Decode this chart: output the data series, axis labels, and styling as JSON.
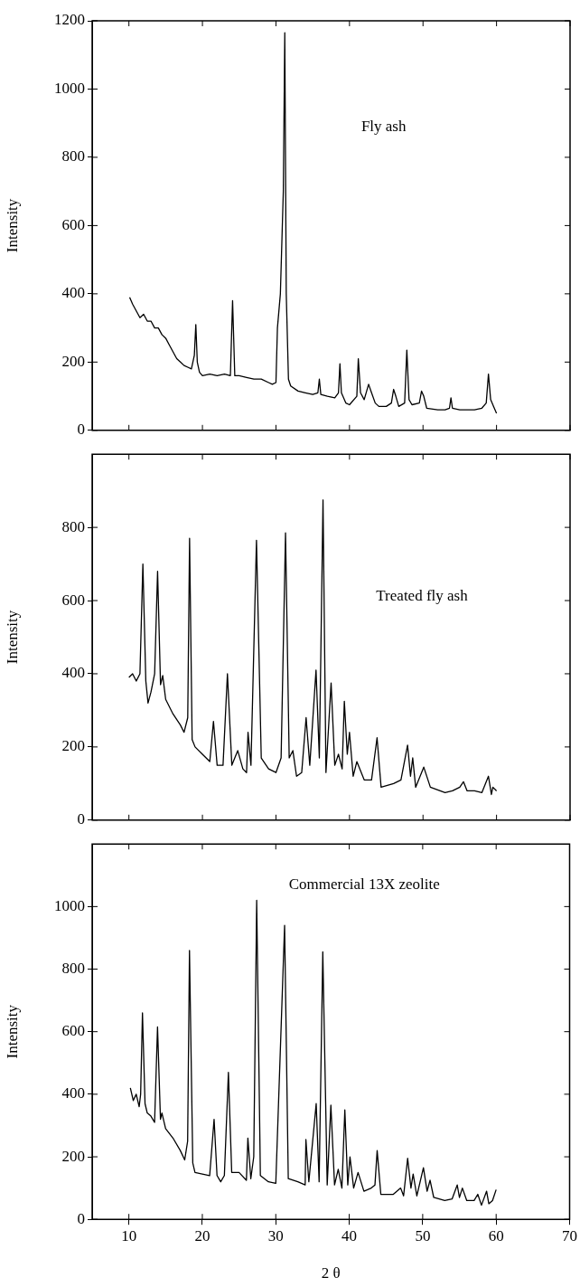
{
  "chart_data": [
    {
      "type": "line",
      "ylabel": "Intensity",
      "annotations": [
        "Fly ash"
      ],
      "xlim": [
        5,
        70
      ],
      "xticks": [
        10,
        20,
        30,
        40,
        50,
        60,
        70
      ],
      "ylim": [
        0,
        1200
      ],
      "yticks": [
        0,
        200,
        400,
        600,
        800,
        1000,
        1200
      ],
      "tick_labels": "y",
      "series": [
        {
          "color": "#000000",
          "x": [
            10.1,
            10.5,
            11,
            11.5,
            12,
            12.5,
            13,
            13.5,
            14,
            14.5,
            15,
            15.5,
            16,
            16.5,
            17,
            17.5,
            18,
            18.5,
            18.9,
            19.1,
            19.3,
            19.6,
            20,
            21,
            22,
            23,
            23.8,
            24.1,
            24.4,
            25,
            26,
            27,
            28,
            29,
            29.5,
            30,
            30.2,
            30.6,
            31,
            31.2,
            31.4,
            31.7,
            32,
            33,
            34,
            35,
            35.7,
            35.9,
            36.1,
            37,
            38,
            38.5,
            38.7,
            38.9,
            39.5,
            40,
            41,
            41.2,
            41.5,
            42,
            42.6,
            43,
            43.5,
            44,
            45,
            45.7,
            46,
            46.3,
            46.7,
            47.5,
            47.8,
            48.1,
            48.5,
            49.5,
            49.8,
            50.1,
            50.5,
            52,
            53,
            53.6,
            53.8,
            54,
            55,
            56,
            57,
            58,
            58.6,
            58.9,
            59.2,
            59.6,
            60
          ],
          "values": [
            390,
            370,
            350,
            330,
            340,
            320,
            320,
            300,
            300,
            280,
            270,
            250,
            230,
            210,
            200,
            190,
            185,
            180,
            220,
            310,
            200,
            170,
            160,
            165,
            160,
            165,
            160,
            380,
            160,
            160,
            155,
            150,
            150,
            140,
            135,
            140,
            300,
            400,
            700,
            1165,
            400,
            150,
            130,
            115,
            110,
            105,
            110,
            150,
            105,
            100,
            95,
            110,
            195,
            110,
            80,
            75,
            100,
            210,
            110,
            90,
            135,
            110,
            80,
            70,
            70,
            80,
            120,
            100,
            70,
            80,
            235,
            90,
            75,
            80,
            115,
            100,
            65,
            60,
            60,
            65,
            95,
            65,
            60,
            60,
            60,
            65,
            80,
            165,
            90,
            70,
            50
          ]
        }
      ]
    },
    {
      "type": "line",
      "ylabel": "Intensity",
      "annotations": [
        "Treated fly ash"
      ],
      "xlim": [
        5,
        70
      ],
      "xticks": [
        10,
        20,
        30,
        40,
        50,
        60,
        70
      ],
      "ylim": [
        0,
        1000
      ],
      "yticks": [
        0,
        200,
        400,
        600,
        800
      ],
      "tick_labels": "y",
      "series": [
        {
          "color": "#000000",
          "x": [
            10,
            10.5,
            11,
            11.5,
            11.9,
            12.3,
            12.6,
            13,
            13.5,
            13.9,
            14.3,
            14.6,
            15,
            16,
            17,
            17.5,
            18,
            18.25,
            18.6,
            19,
            20,
            21,
            21.5,
            22,
            22.8,
            23.4,
            24,
            24.8,
            25.5,
            26,
            26.2,
            26.6,
            27.35,
            28,
            29,
            30,
            30.7,
            31.3,
            31.8,
            32.3,
            32.8,
            33.5,
            34.1,
            34.6,
            35.45,
            35.9,
            36.4,
            36.8,
            37.5,
            38,
            38.5,
            39,
            39.3,
            39.7,
            40,
            40.5,
            41,
            42,
            43,
            43.75,
            44.3,
            46,
            47,
            47.9,
            48.3,
            48.6,
            49,
            50.1,
            51,
            53,
            54,
            55,
            55.5,
            56,
            57,
            58,
            58.9,
            59.3,
            59.5,
            60
          ],
          "values": [
            390,
            400,
            380,
            400,
            700,
            380,
            320,
            350,
            400,
            680,
            370,
            395,
            330,
            290,
            260,
            240,
            280,
            770,
            220,
            200,
            180,
            160,
            270,
            150,
            150,
            400,
            150,
            190,
            140,
            130,
            240,
            150,
            765,
            170,
            140,
            130,
            170,
            785,
            170,
            190,
            120,
            130,
            280,
            150,
            410,
            170,
            875,
            130,
            375,
            150,
            180,
            140,
            325,
            180,
            240,
            120,
            160,
            110,
            110,
            225,
            90,
            100,
            110,
            205,
            120,
            170,
            90,
            145,
            90,
            75,
            80,
            90,
            105,
            80,
            80,
            75,
            120,
            70,
            90,
            80
          ]
        }
      ]
    },
    {
      "type": "line",
      "xlabel": "2 θ",
      "ylabel": "Intensity",
      "annotations": [
        "Commercial 13X zeolite"
      ],
      "xlim": [
        5,
        70
      ],
      "xticks": [
        10,
        20,
        30,
        40,
        50,
        60,
        70
      ],
      "ylim": [
        0,
        1200
      ],
      "yticks": [
        0,
        200,
        400,
        600,
        800,
        1000
      ],
      "series": [
        {
          "color": "#000000",
          "x": [
            10.2,
            10.6,
            11,
            11.4,
            11.6,
            11.85,
            12.2,
            12.5,
            13,
            13.5,
            13.9,
            14.3,
            14.5,
            15,
            16,
            17,
            17.6,
            18,
            18.25,
            18.7,
            19,
            20,
            21,
            21.6,
            22,
            22.5,
            23,
            23.55,
            24,
            25,
            26,
            26.2,
            26.6,
            27,
            27.4,
            27.9,
            29,
            30,
            31.2,
            31.7,
            33,
            34,
            34.1,
            34.5,
            35.5,
            35.9,
            36.4,
            37,
            37.5,
            38,
            38.5,
            39,
            39.4,
            39.8,
            40.1,
            40.6,
            41.2,
            42,
            43,
            43.5,
            43.8,
            44.3,
            46,
            47,
            47.4,
            47.95,
            48.4,
            48.7,
            49.2,
            50.1,
            50.6,
            51,
            51.5,
            53,
            54,
            54.7,
            55,
            55.4,
            56,
            57,
            57.5,
            58,
            58.7,
            59,
            59.5,
            60
          ],
          "values": [
            420,
            380,
            400,
            360,
            400,
            660,
            370,
            340,
            330,
            310,
            615,
            320,
            340,
            290,
            260,
            220,
            190,
            250,
            860,
            180,
            150,
            145,
            140,
            320,
            140,
            120,
            140,
            470,
            150,
            150,
            125,
            260,
            130,
            200,
            1020,
            140,
            120,
            115,
            940,
            130,
            120,
            110,
            255,
            120,
            370,
            120,
            855,
            110,
            365,
            110,
            160,
            100,
            350,
            110,
            200,
            100,
            150,
            90,
            100,
            110,
            220,
            80,
            80,
            100,
            75,
            195,
            100,
            145,
            75,
            165,
            90,
            125,
            70,
            60,
            65,
            110,
            70,
            100,
            60,
            60,
            80,
            45,
            90,
            50,
            60,
            95
          ]
        }
      ]
    }
  ]
}
